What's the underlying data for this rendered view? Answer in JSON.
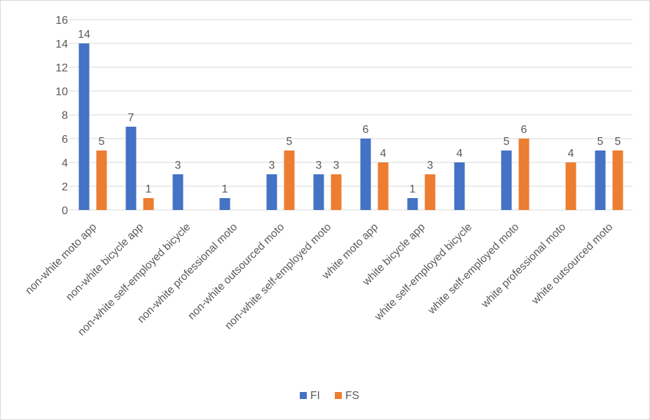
{
  "chart_data": {
    "type": "bar",
    "categories": [
      "non-white moto app",
      "non-white bicycle app",
      "non-white self-employed bicycle",
      "non-white professional moto",
      "non-white outsourced moto",
      "non-white self-employed moto",
      "white moto app",
      "white bicycle app",
      "white self-employed bicycle",
      "white self-employed moto",
      "white professional moto",
      "white outsourced moto"
    ],
    "series": [
      {
        "name": "FI",
        "color": "#4472c4",
        "values": [
          14,
          7,
          3,
          1,
          3,
          3,
          6,
          1,
          4,
          5,
          null,
          5
        ]
      },
      {
        "name": "FS",
        "color": "#ed7d31",
        "values": [
          5,
          1,
          null,
          null,
          5,
          3,
          4,
          3,
          null,
          6,
          4,
          5
        ]
      }
    ],
    "ylim": [
      0,
      16
    ],
    "yticks": [
      0,
      2,
      4,
      6,
      8,
      10,
      12,
      14,
      16
    ],
    "grid": true,
    "legend_position": "bottom",
    "data_labels": true
  }
}
